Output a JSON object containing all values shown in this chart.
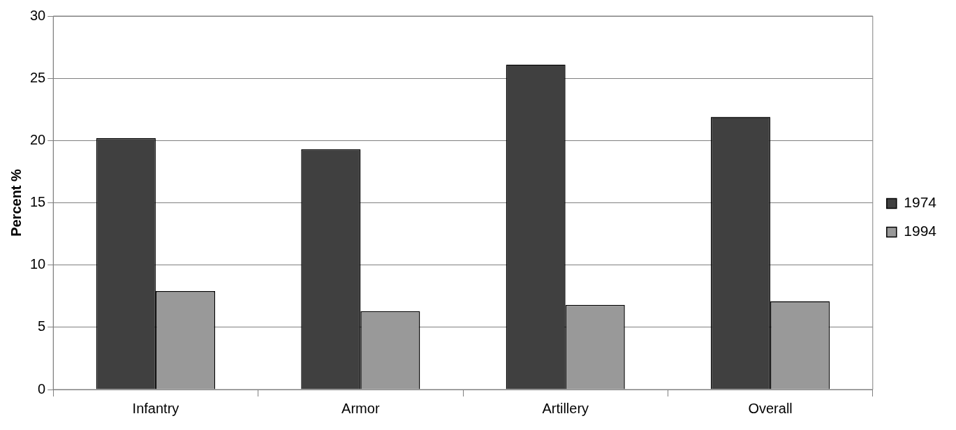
{
  "chart_data": {
    "type": "bar",
    "categories": [
      "Infantry",
      "Armor",
      "Artillery",
      "Overall"
    ],
    "ylabel": "Percent %",
    "series": [
      {
        "name": "1974",
        "color": "#404040",
        "values": [
          20.2,
          19.3,
          26.1,
          21.9
        ]
      },
      {
        "name": "1994",
        "color": "#999999",
        "values": [
          7.9,
          6.3,
          6.8,
          7.1
        ]
      }
    ],
    "ylim": [
      0,
      30
    ],
    "yticks": [
      0,
      5,
      10,
      15,
      20,
      25,
      30
    ],
    "grid": "y",
    "legend": "right"
  }
}
